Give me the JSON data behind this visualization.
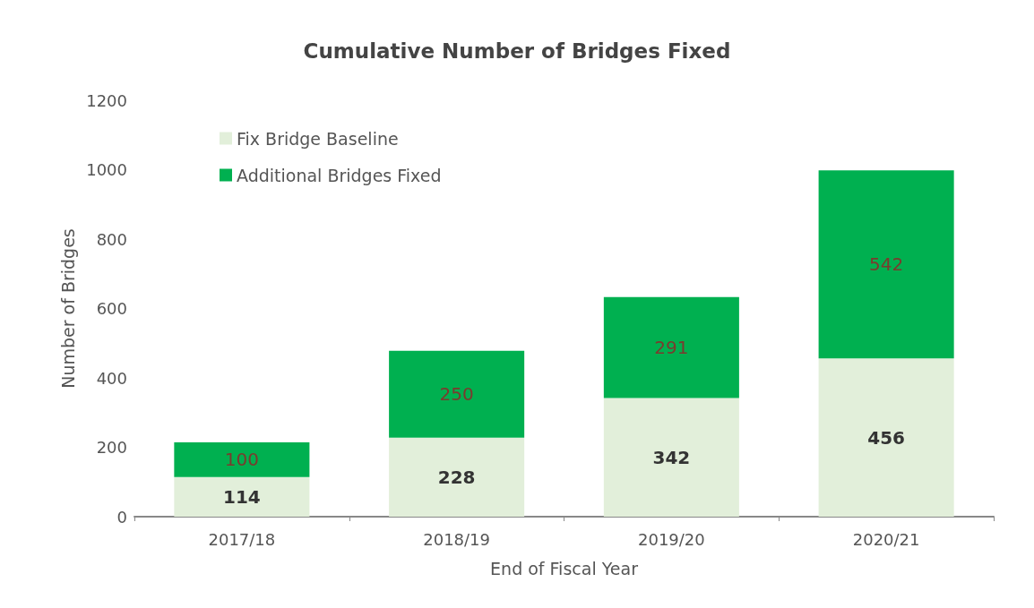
{
  "chart_data": {
    "type": "bar",
    "title": "Cumulative Number of Bridges Fixed",
    "xlabel": "End of Fiscal Year",
    "ylabel": "Number of Bridges",
    "categories": [
      "2017/18",
      "2018/19",
      "2019/20",
      "2020/21"
    ],
    "series": [
      {
        "name": "Fix Bridge Baseline",
        "color": "#e2efda",
        "values": [
          114,
          228,
          342,
          456
        ]
      },
      {
        "name": "Additional Bridges Fixed",
        "color": "#00b050",
        "values": [
          100,
          250,
          291,
          542
        ]
      }
    ],
    "stacked": true,
    "data_labels": true,
    "ylim": [
      0,
      1200
    ],
    "yticks": [
      0,
      200,
      400,
      600,
      800,
      1000,
      1200
    ],
    "grid": false,
    "legend": "top left"
  }
}
